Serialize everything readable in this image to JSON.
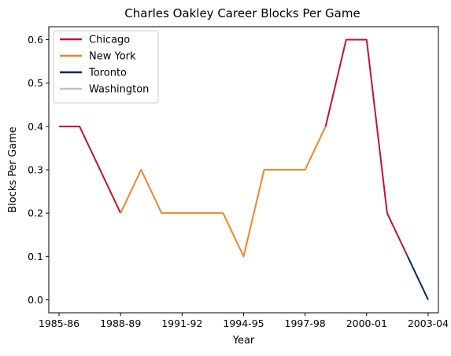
{
  "chart_data": {
    "type": "line",
    "title": "Charles Oakley Career Blocks Per Game",
    "xlabel": "Year",
    "ylabel": "Blocks Per Game",
    "seasons": [
      "1985-86",
      "1986-87",
      "1987-88",
      "1988-89",
      "1989-90",
      "1990-91",
      "1991-92",
      "1992-93",
      "1993-94",
      "1994-95",
      "1995-96",
      "1996-97",
      "1997-98",
      "1998-99",
      "1999-00",
      "2000-01",
      "2001-02",
      "2002-03",
      "2003-04"
    ],
    "x_tick_labels": [
      "1985-86",
      "1988-89",
      "1991-92",
      "1994-95",
      "1997-98",
      "2000-01",
      "2003-04"
    ],
    "x_tick_indices": [
      0,
      3,
      6,
      9,
      12,
      15,
      18
    ],
    "y_ticks": [
      0.0,
      0.1,
      0.2,
      0.3,
      0.4,
      0.5,
      0.6
    ],
    "y_tick_labels": [
      "0.0",
      "0.1",
      "0.2",
      "0.3",
      "0.4",
      "0.5",
      "0.6"
    ],
    "xlim": [
      -0.5,
      18.5
    ],
    "ylim": [
      -0.03,
      0.63
    ],
    "grid": false,
    "legend_placement": "top-left",
    "series": [
      {
        "name": "Chicago",
        "color": "#C8102E",
        "points": [
          {
            "x": "1985-86",
            "y": 0.4
          },
          {
            "x": "1986-87",
            "y": 0.4
          },
          {
            "x": "1987-88",
            "y": 0.3
          },
          {
            "x": "1988-89",
            "y": 0.2
          }
        ]
      },
      {
        "name": "New York",
        "color": "#F58426",
        "points": [
          {
            "x": "1988-89",
            "y": 0.2
          },
          {
            "x": "1989-90",
            "y": 0.3
          },
          {
            "x": "1990-91",
            "y": 0.2
          },
          {
            "x": "1991-92",
            "y": 0.2
          },
          {
            "x": "1992-93",
            "y": 0.2
          },
          {
            "x": "1993-94",
            "y": 0.2
          },
          {
            "x": "1994-95",
            "y": 0.1
          },
          {
            "x": "1995-96",
            "y": 0.3
          },
          {
            "x": "1996-97",
            "y": 0.3
          },
          {
            "x": "1997-98",
            "y": 0.3
          },
          {
            "x": "1998-99",
            "y": 0.4
          }
        ]
      },
      {
        "name": "Chicago",
        "color": "#C8102E",
        "points": [
          {
            "x": "1998-99",
            "y": 0.4
          },
          {
            "x": "1999-00",
            "y": 0.6
          },
          {
            "x": "2000-01",
            "y": 0.6
          },
          {
            "x": "2001-02",
            "y": 0.2
          },
          {
            "x": "2002-03",
            "y": 0.1
          }
        ]
      },
      {
        "name": "Toronto",
        "color": "#002B5C",
        "points": [
          {
            "x": "2002-03",
            "y": 0.1
          },
          {
            "x": "2003-04",
            "y": 0.0
          }
        ]
      }
    ],
    "legend": [
      {
        "name": "Chicago",
        "color": "#C8102E"
      },
      {
        "name": "New York",
        "color": "#F58426"
      },
      {
        "name": "Toronto",
        "color": "#002B5C"
      },
      {
        "name": "Washington",
        "color": "#BFBFBF"
      }
    ]
  }
}
